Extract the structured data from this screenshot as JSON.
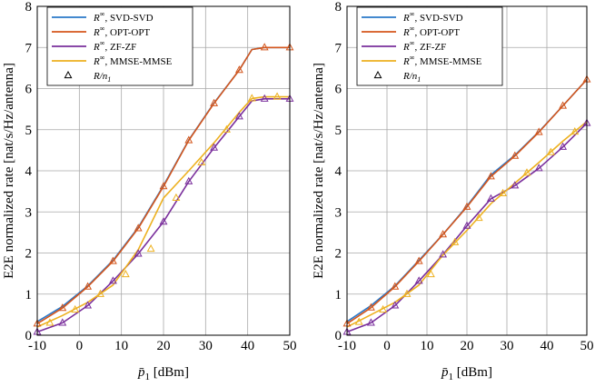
{
  "chart_data": [
    {
      "type": "line",
      "xlabel_symbol": "p̄",
      "xlabel_sub": "1",
      "xlabel_unit": "[dBm]",
      "ylabel": "E2E normalized rate [nat/s/Hz/antenna]",
      "xlim": [
        -10,
        50
      ],
      "ylim": [
        0,
        8
      ],
      "xticks": [
        "-10",
        "0",
        "10",
        "20",
        "30",
        "40",
        "50"
      ],
      "yticks": [
        "0",
        "1",
        "2",
        "3",
        "4",
        "5",
        "6",
        "7",
        "8"
      ],
      "grid": true,
      "legend_position": "top-left",
      "legend": [
        {
          "sym": "R",
          "sup": "∞",
          "text": ", SVD-SVD",
          "color": "#2a78c8"
        },
        {
          "sym": "R",
          "sup": "∞",
          "text": ", OPT-OPT",
          "color": "#d4561c"
        },
        {
          "sym": "R",
          "sup": "∞",
          "text": ", ZF-ZF",
          "color": "#7a2f9c"
        },
        {
          "sym": "R",
          "sup": "∞",
          "text": ", MMSE-MMSE",
          "color": "#edb120"
        },
        {
          "sym": "R/n",
          "sub": "1",
          "marker": "triangle",
          "color": "#000000"
        }
      ],
      "series": [
        {
          "color": "#2a78c8",
          "x": [
            -10,
            -4,
            2,
            8,
            14,
            20,
            26,
            32,
            38,
            41,
            44,
            47,
            50
          ],
          "values": [
            0.33,
            0.7,
            1.2,
            1.82,
            2.62,
            3.64,
            4.75,
            5.65,
            6.45,
            6.95,
            7.0,
            7.0,
            7.0
          ]
        },
        {
          "color": "#d4561c",
          "x": [
            -10,
            -4,
            2,
            8,
            14,
            20,
            26,
            32,
            38,
            41,
            44,
            47,
            50
          ],
          "values": [
            0.28,
            0.66,
            1.18,
            1.8,
            2.6,
            3.62,
            4.74,
            5.64,
            6.45,
            6.95,
            7.0,
            7.0,
            7.0
          ]
        },
        {
          "color": "#7a2f9c",
          "x": [
            -10,
            -4,
            2,
            8,
            14,
            20,
            26,
            32,
            38,
            41,
            44,
            47,
            50
          ],
          "values": [
            0.08,
            0.3,
            0.72,
            1.32,
            1.98,
            2.76,
            3.74,
            4.56,
            5.32,
            5.7,
            5.75,
            5.75,
            5.75
          ]
        },
        {
          "color": "#edb120",
          "x": [
            -10,
            -4,
            2,
            8,
            14,
            20,
            26,
            32,
            38,
            41,
            44,
            47,
            50
          ],
          "values": [
            0.2,
            0.48,
            0.8,
            1.22,
            2.08,
            3.34,
            4.0,
            4.68,
            5.42,
            5.76,
            5.8,
            5.8,
            5.8
          ]
        }
      ],
      "markers": [
        {
          "color": "#d4561c",
          "x": [
            -10,
            -4,
            2,
            8,
            14,
            20,
            26,
            32,
            38,
            44,
            50
          ],
          "values": [
            0.28,
            0.66,
            1.18,
            1.8,
            2.6,
            3.62,
            4.74,
            5.64,
            6.45,
            7.0,
            7.0
          ]
        },
        {
          "color": "#7a2f9c",
          "x": [
            -10,
            -4,
            2,
            8,
            14,
            20,
            26,
            32,
            38,
            44,
            50
          ],
          "values": [
            0.08,
            0.3,
            0.72,
            1.32,
            1.98,
            2.76,
            3.74,
            4.56,
            5.32,
            5.75,
            5.75
          ]
        },
        {
          "color": "#edb120",
          "x": [
            -7,
            -1,
            5,
            11,
            17,
            23,
            29,
            35,
            41,
            47
          ],
          "values": [
            0.3,
            0.62,
            1.0,
            1.48,
            2.1,
            3.34,
            4.2,
            5.0,
            5.76,
            5.8
          ]
        }
      ]
    },
    {
      "type": "line",
      "xlabel_symbol": "p̄",
      "xlabel_sub": "1",
      "xlabel_unit": "[dBm]",
      "ylabel": "E2E normalized rate [nat/s/Hz/antenna]",
      "xlim": [
        -10,
        50
      ],
      "ylim": [
        0,
        8
      ],
      "xticks": [
        "-10",
        "0",
        "10",
        "20",
        "30",
        "40",
        "50"
      ],
      "yticks": [
        "0",
        "1",
        "2",
        "3",
        "4",
        "5",
        "6",
        "7",
        "8"
      ],
      "grid": true,
      "legend_position": "top-left",
      "legend": [
        {
          "sym": "R",
          "sup": "∞",
          "text": ", SVD-SVD",
          "color": "#2a78c8"
        },
        {
          "sym": "R",
          "sup": "∞",
          "text": ", OPT-OPT",
          "color": "#d4561c"
        },
        {
          "sym": "R",
          "sup": "∞",
          "text": ", ZF-ZF",
          "color": "#7a2f9c"
        },
        {
          "sym": "R",
          "sup": "∞",
          "text": ", MMSE-MMSE",
          "color": "#edb120"
        },
        {
          "sym": "R/n",
          "sub": "1",
          "marker": "triangle",
          "color": "#000000"
        }
      ],
      "series": [
        {
          "color": "#2a78c8",
          "x": [
            -10,
            -4,
            2,
            8,
            14,
            20,
            26,
            32,
            38,
            44,
            50
          ],
          "values": [
            0.33,
            0.72,
            1.2,
            1.82,
            2.45,
            3.14,
            3.9,
            4.38,
            4.95,
            5.58,
            6.22
          ]
        },
        {
          "color": "#d4561c",
          "x": [
            -10,
            -4,
            2,
            8,
            14,
            20,
            26,
            32,
            38,
            44,
            50
          ],
          "values": [
            0.28,
            0.67,
            1.18,
            1.8,
            2.45,
            3.12,
            3.86,
            4.36,
            4.94,
            5.58,
            6.22
          ]
        },
        {
          "color": "#7a2f9c",
          "x": [
            -10,
            -4,
            2,
            8,
            14,
            20,
            26,
            32,
            38,
            44,
            50
          ],
          "values": [
            0.08,
            0.3,
            0.72,
            1.32,
            1.96,
            2.66,
            3.32,
            3.64,
            4.06,
            4.58,
            5.16
          ]
        },
        {
          "color": "#edb120",
          "x": [
            -10,
            -4,
            2,
            8,
            14,
            20,
            26,
            32,
            38,
            44,
            50
          ],
          "values": [
            0.2,
            0.5,
            0.8,
            1.22,
            1.95,
            2.55,
            3.2,
            3.7,
            4.2,
            4.72,
            5.2
          ]
        }
      ],
      "markers": [
        {
          "color": "#d4561c",
          "x": [
            -10,
            -4,
            2,
            8,
            14,
            20,
            26,
            32,
            38,
            44,
            50
          ],
          "values": [
            0.28,
            0.67,
            1.18,
            1.8,
            2.45,
            3.12,
            3.86,
            4.36,
            4.94,
            5.58,
            6.22
          ]
        },
        {
          "color": "#7a2f9c",
          "x": [
            -10,
            -4,
            2,
            8,
            14,
            20,
            26,
            32,
            38,
            44,
            50
          ],
          "values": [
            0.08,
            0.3,
            0.72,
            1.32,
            1.96,
            2.66,
            3.32,
            3.64,
            4.06,
            4.58,
            5.16
          ]
        },
        {
          "color": "#edb120",
          "x": [
            -7,
            -1,
            5,
            11,
            17,
            23,
            29,
            35,
            41,
            47
          ],
          "values": [
            0.32,
            0.62,
            1.0,
            1.48,
            2.26,
            2.85,
            3.45,
            3.95,
            4.45,
            4.95
          ]
        }
      ]
    }
  ]
}
